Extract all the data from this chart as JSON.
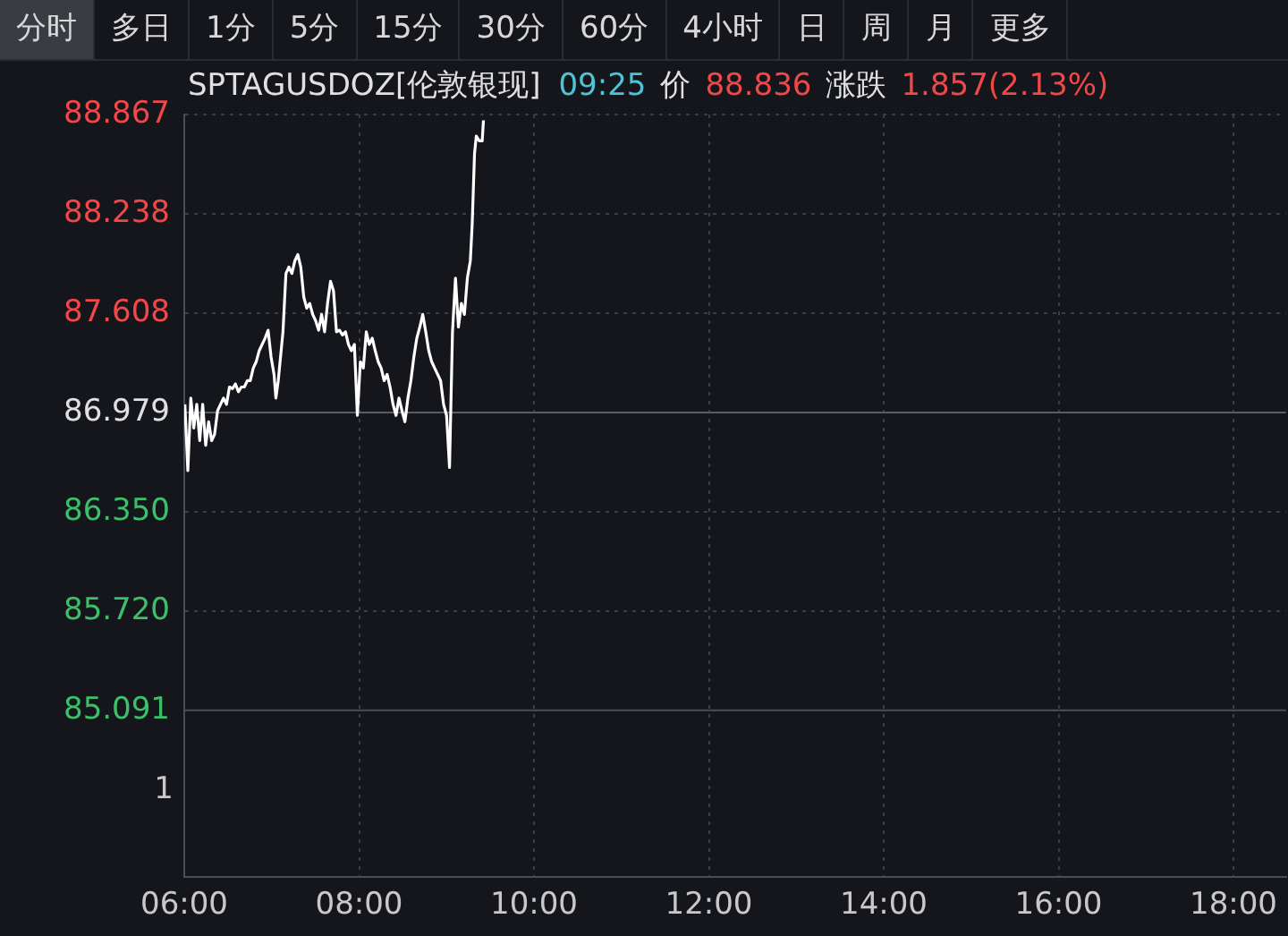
{
  "chart_data": {
    "type": "line",
    "title": "SPTAGUSDOZ[伦敦银现]",
    "annotations": [
      "分时",
      "多日",
      "1分",
      "5分",
      "15分",
      "30分",
      "60分",
      "4小时",
      "日",
      "周",
      "月",
      "更多",
      "09:25",
      "价",
      "88.836",
      "涨跌",
      "1.857(2.13%)",
      "1"
    ],
    "series": [
      {
        "color": "#ffffff",
        "x": [
          6.007,
          6.041,
          6.075,
          6.109,
          6.143,
          6.177,
          6.211,
          6.245,
          6.279,
          6.313,
          6.347,
          6.381,
          6.415,
          6.449,
          6.483,
          6.517,
          6.551,
          6.585,
          6.619,
          6.653,
          6.687,
          6.721,
          6.755,
          6.789,
          6.823,
          6.857,
          6.891,
          6.925,
          6.959,
          6.993,
          7.027,
          7.048,
          7.075,
          7.129,
          7.163,
          7.197,
          7.231,
          7.265,
          7.299,
          7.333,
          7.367,
          7.401,
          7.435,
          7.469,
          7.503,
          7.537,
          7.571,
          7.605,
          7.639,
          7.673,
          7.707,
          7.741,
          7.776,
          7.81,
          7.844,
          7.878,
          7.912,
          7.946,
          7.98,
          8.014,
          8.048,
          8.082,
          8.116,
          8.15,
          8.184,
          8.218,
          8.252,
          8.286,
          8.32,
          8.354,
          8.388,
          8.422,
          8.456,
          8.49,
          8.524,
          8.558,
          8.592,
          8.626,
          8.66,
          8.694,
          8.728,
          8.762,
          8.796,
          8.83,
          8.864,
          8.898,
          8.932,
          8.966,
          9.0,
          9.034,
          9.068,
          9.102,
          9.136,
          9.17,
          9.204,
          9.238,
          9.272,
          9.293,
          9.32,
          9.34,
          9.374,
          9.408,
          9.422
        ],
        "values": [
          87.03,
          86.61,
          87.07,
          86.88,
          87.03,
          86.8,
          87.03,
          86.77,
          86.92,
          86.8,
          86.84,
          86.99,
          87.03,
          87.07,
          87.03,
          87.14,
          87.13,
          87.16,
          87.11,
          87.14,
          87.14,
          87.18,
          87.18,
          87.26,
          87.3,
          87.37,
          87.41,
          87.45,
          87.5,
          87.33,
          87.22,
          87.07,
          87.18,
          87.49,
          87.86,
          87.9,
          87.86,
          87.94,
          87.98,
          87.9,
          87.71,
          87.64,
          87.67,
          87.6,
          87.56,
          87.5,
          87.6,
          87.49,
          87.67,
          87.81,
          87.75,
          87.49,
          87.5,
          87.47,
          87.49,
          87.41,
          87.37,
          87.41,
          86.96,
          87.3,
          87.26,
          87.49,
          87.41,
          87.45,
          87.37,
          87.3,
          87.26,
          87.18,
          87.22,
          87.14,
          87.03,
          86.96,
          87.07,
          86.99,
          86.92,
          87.07,
          87.18,
          87.33,
          87.45,
          87.52,
          87.6,
          87.49,
          87.37,
          87.3,
          87.26,
          87.22,
          87.18,
          87.03,
          86.96,
          86.63,
          87.49,
          87.83,
          87.52,
          87.67,
          87.6,
          87.83,
          87.94,
          88.17,
          88.62,
          88.73,
          88.7,
          88.7,
          88.83
        ]
      }
    ],
    "xlim": [
      6,
      18.6
    ],
    "xticks": [
      {
        "value": 6,
        "label": "06:00"
      },
      {
        "value": 8,
        "label": "08:00"
      },
      {
        "value": 10,
        "label": "10:00"
      },
      {
        "value": 12,
        "label": "12:00"
      },
      {
        "value": 14,
        "label": "14:00"
      },
      {
        "value": 16,
        "label": "16:00"
      },
      {
        "value": 18,
        "label": "18:00"
      }
    ],
    "ylim": [
      84.035,
      88.867
    ],
    "yticks": [
      85.091,
      {
        "value": 85.72,
        "label": "85.720"
      },
      {
        "value": 86.35,
        "label": "86.350"
      },
      86.979,
      87.608,
      88.238,
      88.867
    ],
    "ref_lines": [
      {
        "axis": "y",
        "value": 86.979,
        "color": "#5a5d66"
      },
      {
        "axis": "y",
        "value": 85.091,
        "color": "#4a4d55"
      }
    ],
    "grid": true,
    "legend": false,
    "marker": "none",
    "line_style": "solid"
  }
}
